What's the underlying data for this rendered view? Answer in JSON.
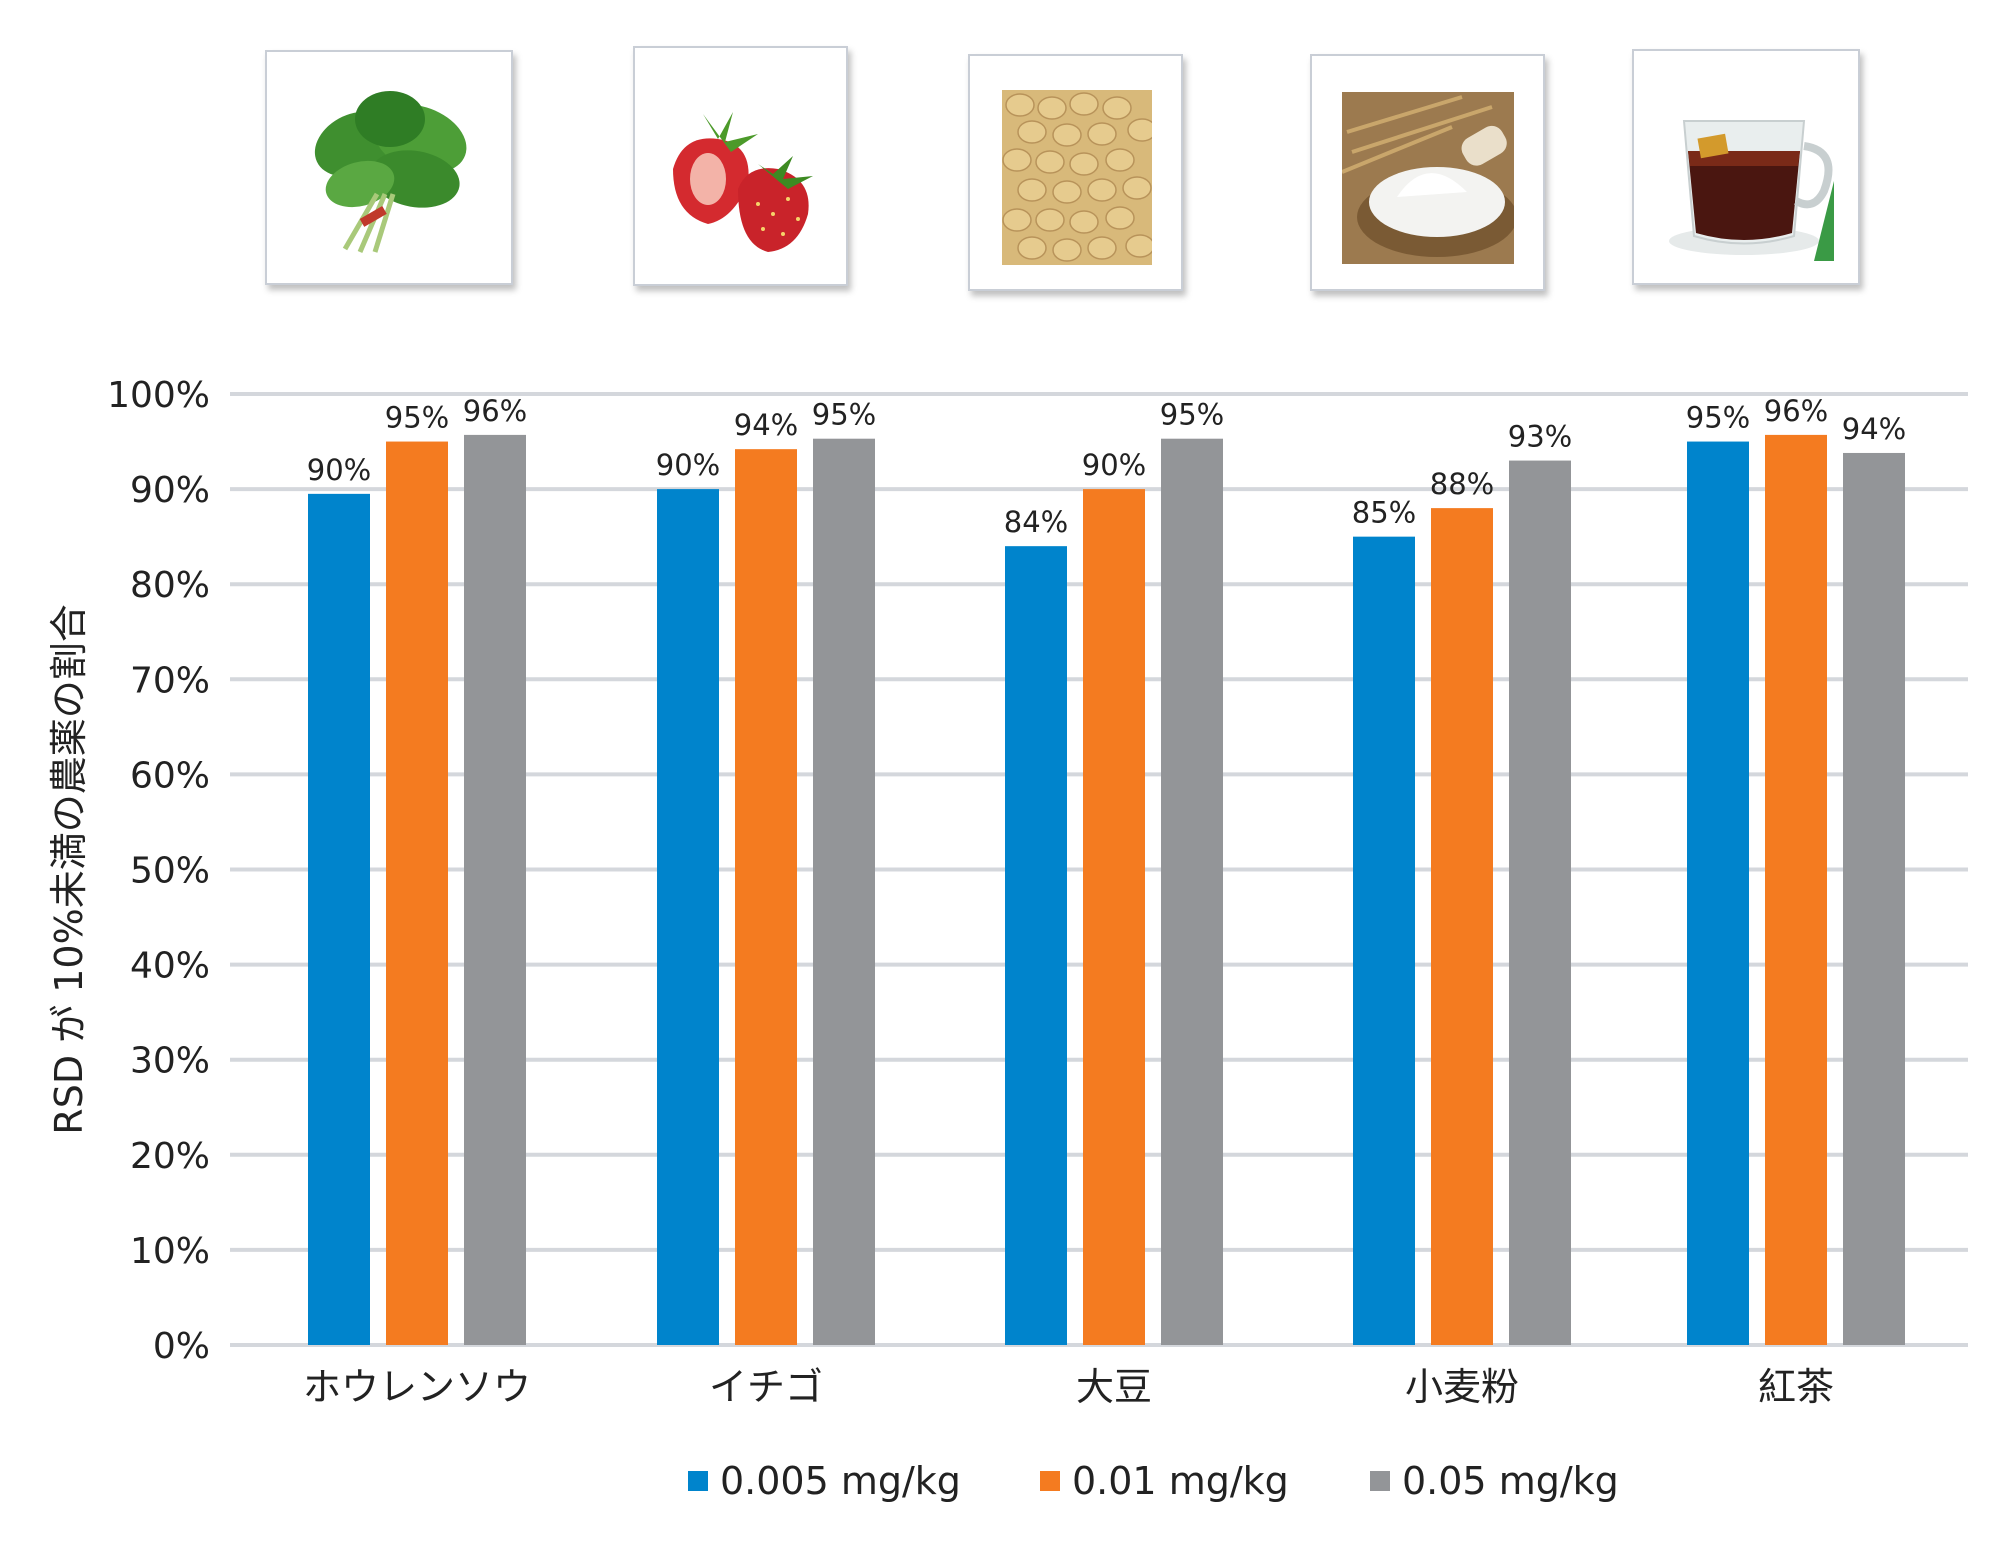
{
  "chart_data": {
    "type": "bar",
    "ylabel": "RSD が 10%未満の農薬の割合",
    "ylim": [
      0,
      100
    ],
    "yticks": [
      "0%",
      "10%",
      "20%",
      "30%",
      "40%",
      "50%",
      "60%",
      "70%",
      "80%",
      "90%",
      "100%"
    ],
    "grid": true,
    "legend_position": "bottom",
    "categories": [
      "ホウレンソウ",
      "イチゴ",
      "大豆",
      "小麦粉",
      "紅茶"
    ],
    "category_images": [
      "spinach",
      "strawberry",
      "soybeans",
      "wheat-flour",
      "black-tea"
    ],
    "series": [
      {
        "name": "0.005 mg/kg",
        "color": "#0084cc",
        "values": [
          89.5,
          90,
          84,
          85,
          95
        ],
        "labels": [
          "90%",
          "90%",
          "84%",
          "85%",
          "95%"
        ]
      },
      {
        "name": "0.01 mg/kg",
        "color": "#f47b20",
        "values": [
          95,
          94.2,
          90,
          88,
          95.7
        ],
        "labels": [
          "95%",
          "94%",
          "90%",
          "88%",
          "96%"
        ]
      },
      {
        "name": "0.05 mg/kg",
        "color": "#939598",
        "values": [
          95.7,
          95.3,
          95.3,
          93,
          93.8
        ],
        "labels": [
          "96%",
          "95%",
          "95%",
          "93%",
          "94%"
        ]
      }
    ]
  }
}
